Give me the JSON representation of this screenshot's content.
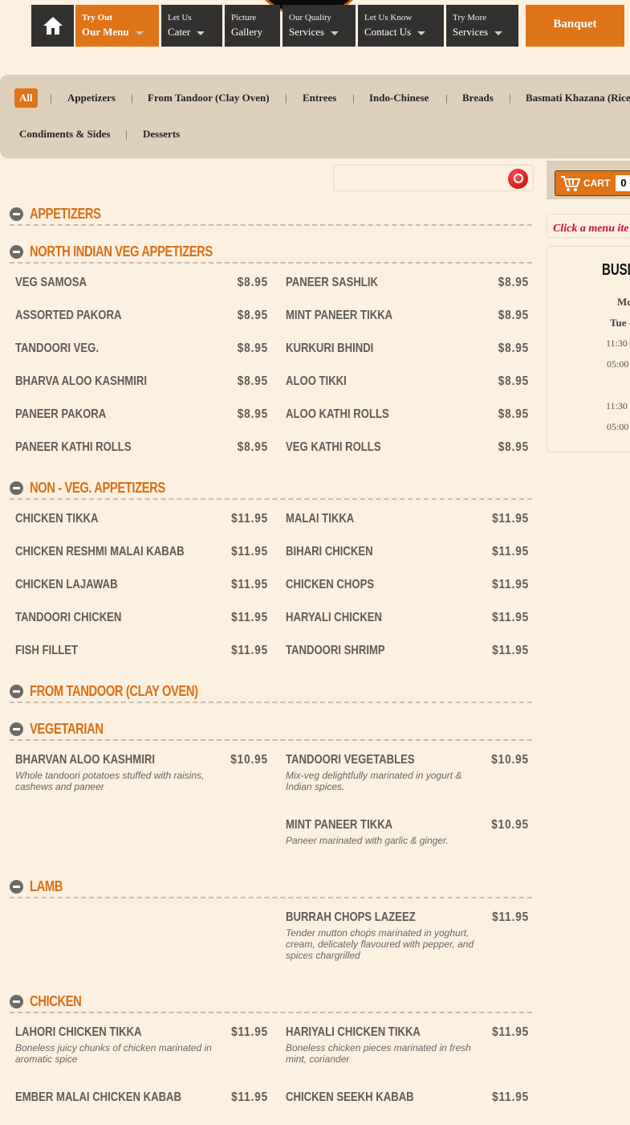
{
  "nav": {
    "items": [
      {
        "small": "Try Out",
        "big": "Our Menu",
        "caret": true
      },
      {
        "small": "Let Us",
        "big": "Cater",
        "caret": true
      },
      {
        "small": "Picture",
        "big": "Gallery",
        "caret": false
      },
      {
        "small": "Our Quality",
        "big": "Services",
        "caret": true
      },
      {
        "small": "Let Us Know",
        "big": "Contact Us",
        "caret": true
      },
      {
        "small": "Try More",
        "big": "Services",
        "caret": true
      }
    ],
    "banquet": "Banquet",
    "home_icon": "home-icon",
    "accent": "#e07418"
  },
  "categories": [
    "All",
    "Appetizers",
    "From Tandoor (Clay Oven)",
    "Entrees",
    "Indo-Chinese",
    "Breads",
    "Basmati Khazana (Rice",
    "Condiments & Sides",
    "Desserts"
  ],
  "search": {
    "value": "",
    "placeholder": ""
  },
  "cart": {
    "label": "CART",
    "count": "0"
  },
  "notice": "Click a menu ite",
  "hours": {
    "title": "BUSI",
    "rows": [
      "Mo",
      "Tue -",
      "11:30",
      "05:00",
      "11:30",
      "05:00"
    ]
  },
  "sections": [
    {
      "title": "Appetizers",
      "rows": []
    },
    {
      "title": "North Indian Veg Appetizers",
      "rows": [
        [
          {
            "name": "Veg Samosa",
            "price": "$8.95"
          },
          {
            "name": "Paneer Sashlik",
            "price": "$8.95"
          }
        ],
        [
          {
            "name": "Assorted Pakora",
            "price": "$8.95"
          },
          {
            "name": "Mint Paneer Tikka",
            "price": "$8.95"
          }
        ],
        [
          {
            "name": "Tandoori Veg.",
            "price": "$8.95"
          },
          {
            "name": "Kurkuri Bhindi",
            "price": "$8.95"
          }
        ],
        [
          {
            "name": "Bharva Aloo Kashmiri",
            "price": "$8.95"
          },
          {
            "name": "Aloo Tikki",
            "price": "$8.95"
          }
        ],
        [
          {
            "name": "Paneer Pakora",
            "price": "$8.95"
          },
          {
            "name": "Aloo Kathi Rolls",
            "price": "$8.95"
          }
        ],
        [
          {
            "name": "Paneer Kathi Rolls",
            "price": "$8.95"
          },
          {
            "name": "Veg Kathi Rolls",
            "price": "$8.95"
          }
        ]
      ]
    },
    {
      "title": "Non - Veg. Appetizers",
      "rows": [
        [
          {
            "name": "Chicken Tikka",
            "price": "$11.95"
          },
          {
            "name": "Malai Tikka",
            "price": "$11.95"
          }
        ],
        [
          {
            "name": "Chicken Reshmi Malai Kabab",
            "price": "$11.95"
          },
          {
            "name": "Bihari Chicken",
            "price": "$11.95"
          }
        ],
        [
          {
            "name": "Chicken Lajawab",
            "price": "$11.95"
          },
          {
            "name": "Chicken Chops",
            "price": "$11.95"
          }
        ],
        [
          {
            "name": "Tandoori Chicken",
            "price": "$11.95"
          },
          {
            "name": "Haryali Chicken",
            "price": "$11.95"
          }
        ],
        [
          {
            "name": "Fish Fillet",
            "price": "$11.95"
          },
          {
            "name": "Tandoori Shrimp",
            "price": "$11.95"
          }
        ]
      ]
    },
    {
      "title": "From Tandoor (Clay Oven)",
      "rows": []
    },
    {
      "title": "Vegetarian",
      "rows": [
        [
          {
            "name": "Bharvan Aloo Kashmiri",
            "price": "$10.95",
            "desc": "Whole tandoori potatoes stuffed with raisins, cashews and paneer"
          },
          {
            "name": "Tandoori Vegetables",
            "price": "$10.95",
            "desc": "Mix-veg delightfully marinated in yogurt & Indian spices."
          }
        ],
        [
          null,
          {
            "name": "Mint Paneer Tikka",
            "price": "$10.95",
            "desc": "Paneer marinated with garlic & ginger."
          }
        ]
      ]
    },
    {
      "title": "Lamb",
      "rows": [
        [
          null,
          {
            "name": "Burrah Chops Lazeez",
            "price": "$11.95",
            "desc": "Tender mutton chops marinated in yoghurt, cream, delicately flavoured with pepper, and spices chargrilled"
          }
        ]
      ]
    },
    {
      "title": "Chicken",
      "rows": [
        [
          {
            "name": "Lahori Chicken Tikka",
            "price": "$11.95",
            "desc": "Boneless juicy chunks of chicken marinated in aromatic spice"
          },
          {
            "name": "Hariyali Chicken Tikka",
            "price": "$11.95",
            "desc": "Boneless chicken pieces marinated in fresh mint, coriander"
          }
        ],
        [
          {
            "name": "Ember Malai Chicken Kabab",
            "price": "$11.95"
          },
          {
            "name": "Chicken Seekh Kabab",
            "price": "$11.95"
          }
        ]
      ]
    }
  ]
}
